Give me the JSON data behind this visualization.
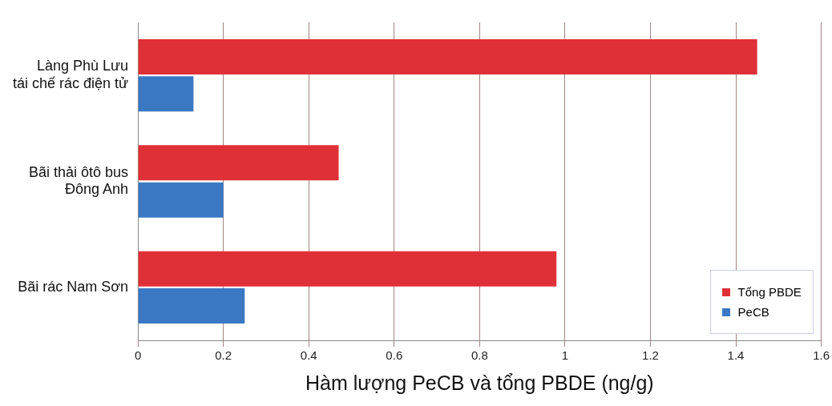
{
  "chart_data": {
    "type": "bar",
    "orientation": "horizontal",
    "xlabel": "Hàm lượng PeCB và tổng PBDE (ng/g)",
    "categories": [
      "Làng Phù Lưu\ntái chế rác điện tử",
      "Bãi thải ôtô bus\nĐông Anh",
      "Bãi rác Nam Sơn"
    ],
    "series": [
      {
        "name": "Tổng PBDE",
        "color": "#e03037",
        "values": [
          1.45,
          0.47,
          0.98
        ]
      },
      {
        "name": "PeCB",
        "color": "#3a78c4",
        "values": [
          0.13,
          0.2,
          0.25
        ]
      }
    ],
    "xlim": [
      0,
      1.6
    ],
    "xticks": [
      0,
      0.2,
      0.4,
      0.6,
      0.8,
      1,
      1.2,
      1.4,
      1.6
    ],
    "grid": "x",
    "legend": "bottom right"
  }
}
